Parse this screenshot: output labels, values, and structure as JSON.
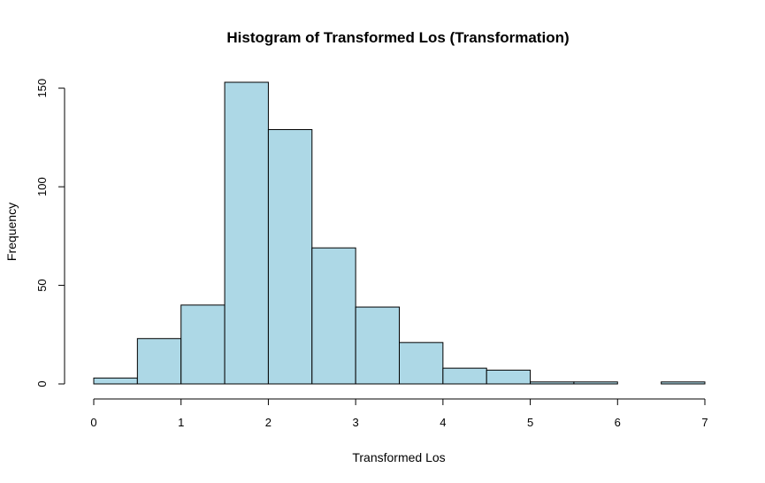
{
  "chart_data": {
    "type": "bar",
    "title": "Histogram of Transformed Los (Transformation)",
    "xlabel": "Transformed Los",
    "ylabel": "Frequency",
    "bin_edges": [
      0,
      0.5,
      1,
      1.5,
      2,
      2.5,
      3,
      3.5,
      4,
      4.5,
      5,
      5.5,
      6,
      6.5,
      7
    ],
    "values": [
      3,
      23,
      40,
      153,
      129,
      69,
      39,
      21,
      8,
      7,
      1,
      1,
      0,
      1
    ],
    "xlim": [
      0,
      7
    ],
    "ylim": [
      0,
      153
    ],
    "x_ticks": [
      0,
      1,
      2,
      3,
      4,
      5,
      6,
      7
    ],
    "y_ticks": [
      0,
      50,
      100,
      150
    ],
    "grid": false,
    "bar_color": "#add8e6",
    "edge_color": "#000000"
  }
}
